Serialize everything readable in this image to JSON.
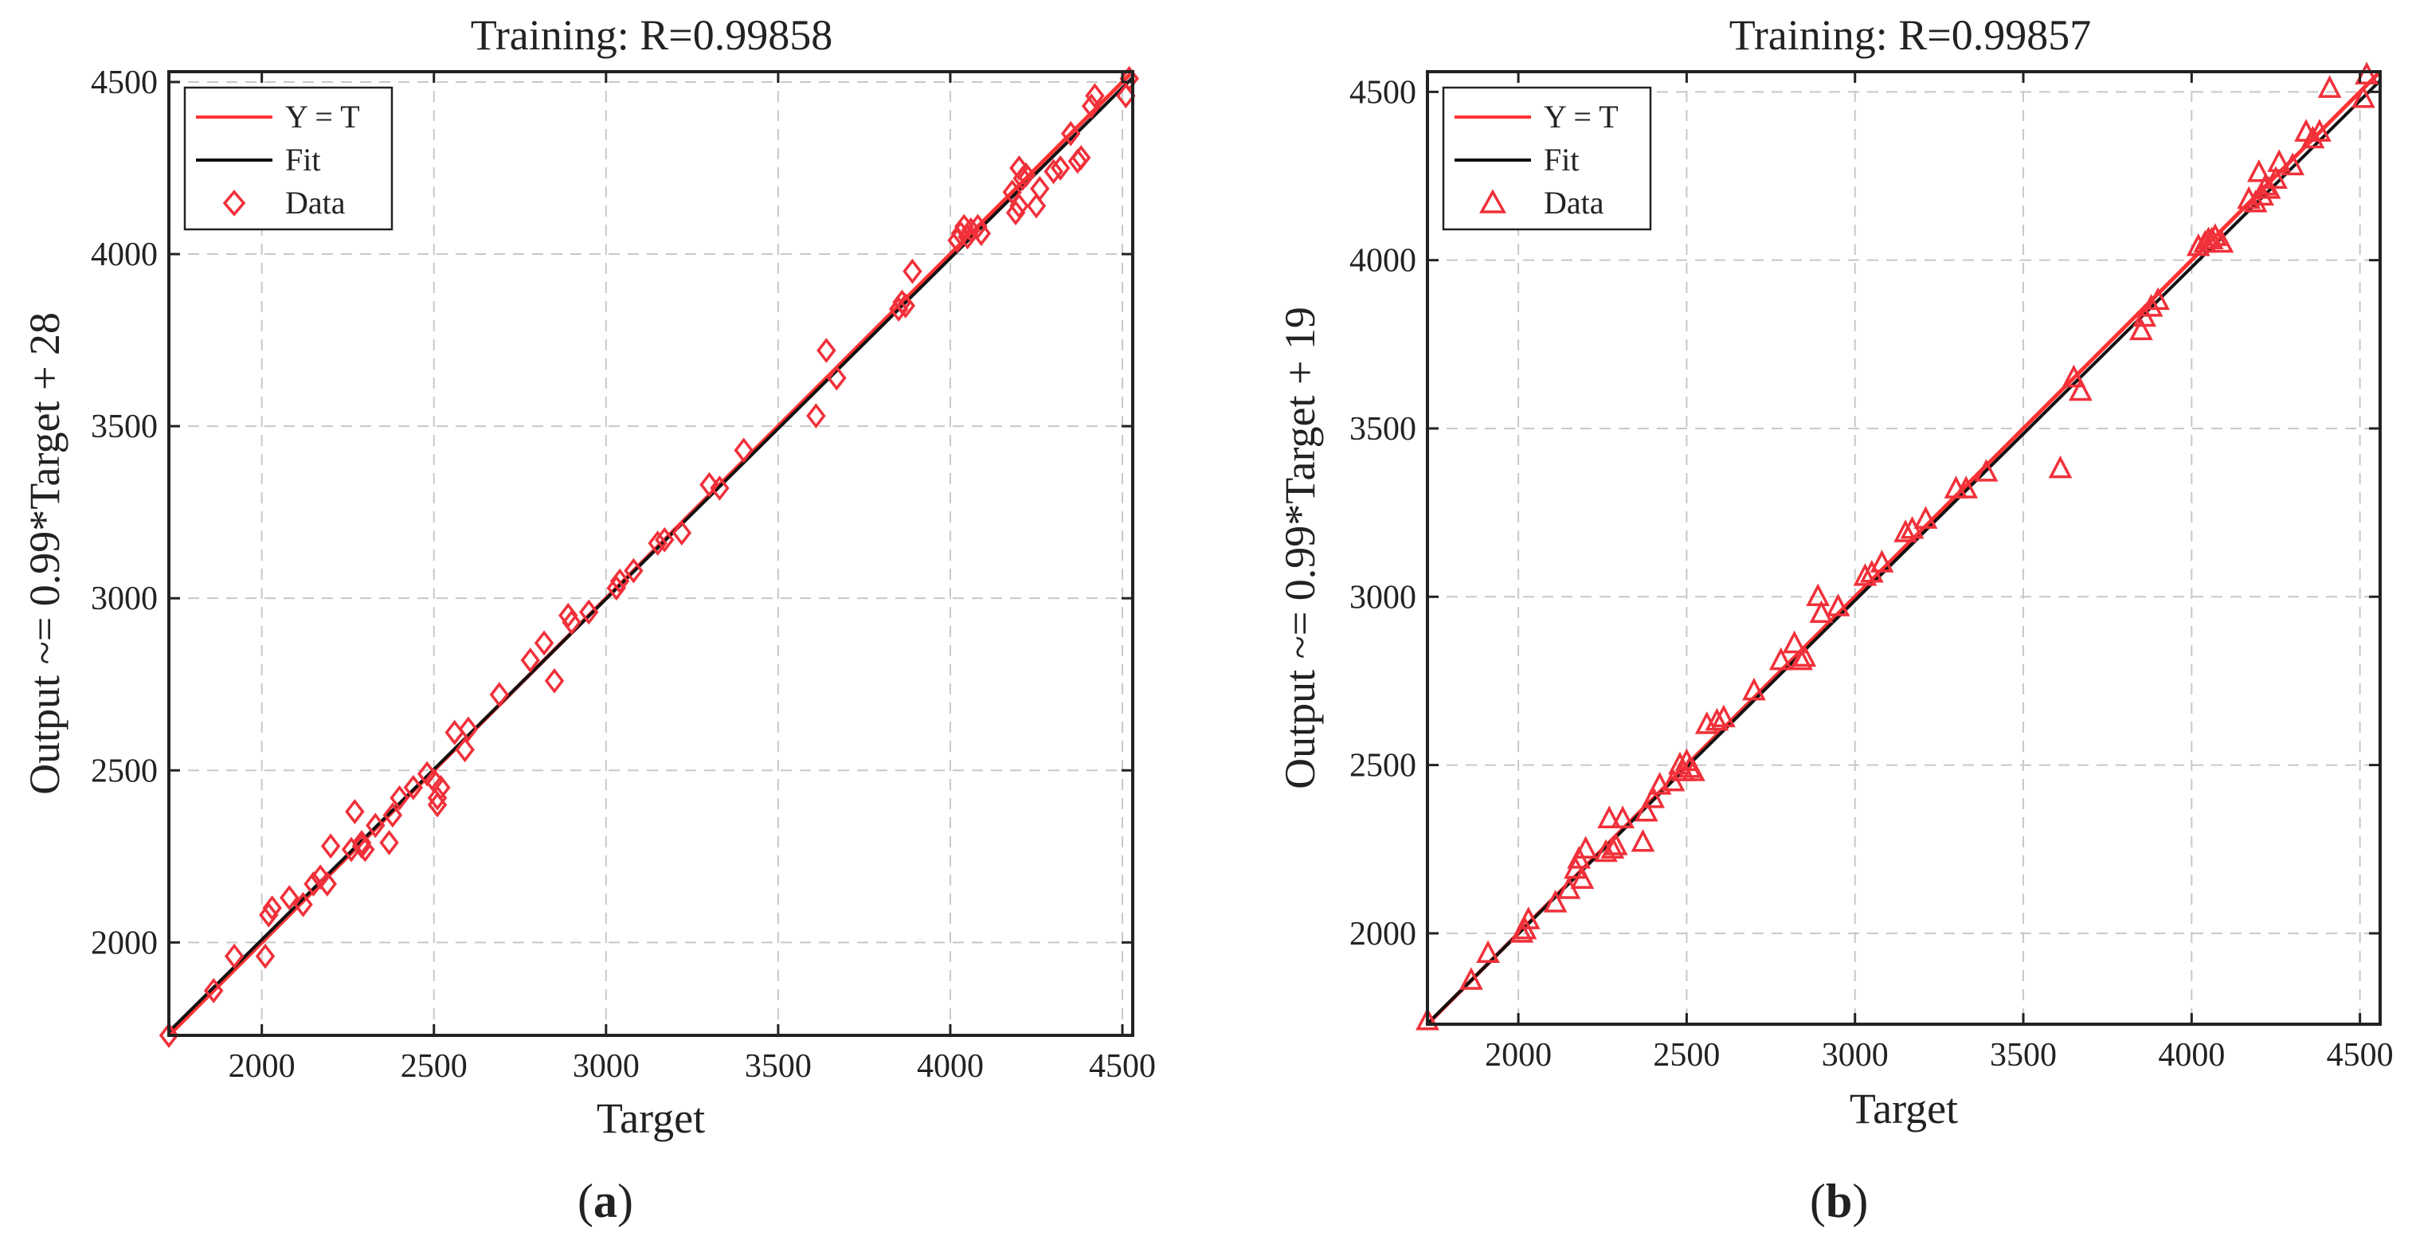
{
  "colors": {
    "identity_line": "#ff3333",
    "fit_line": "#111111",
    "marker": "#f0303a",
    "grid": "#c8c8c8",
    "axis": "#222222"
  },
  "chart_data": [
    {
      "panel": "(a)",
      "caption": {
        "open": "(",
        "letter": "a",
        "close": ")"
      },
      "type": "scatter",
      "title": "Training: R=0.99858",
      "xlabel": "Target",
      "ylabel": "Output ~= 0.99*Target + 28",
      "xlim": [
        1730,
        4530
      ],
      "ylim": [
        1730,
        4530
      ],
      "xticks": [
        2000,
        2500,
        3000,
        3500,
        4000,
        4500
      ],
      "yticks": [
        2000,
        2500,
        3000,
        3500,
        4000,
        4500
      ],
      "grid": true,
      "legend": {
        "position": "top-left",
        "entries": [
          {
            "label": "Y = T",
            "kind": "identity"
          },
          {
            "label": "Fit",
            "kind": "fit"
          },
          {
            "label": "Data",
            "kind": "marker"
          }
        ]
      },
      "marker": "diamond",
      "identity": {
        "x": [
          1730,
          4530
        ],
        "y": [
          1730,
          4530
        ]
      },
      "fit": {
        "slope": 0.99,
        "intercept": 28,
        "x": [
          1730,
          4530
        ]
      },
      "series": [
        {
          "name": "Data",
          "x": [
            1730,
            1860,
            1920,
            2010,
            2020,
            2030,
            2080,
            2120,
            2150,
            2170,
            2190,
            2200,
            2260,
            2270,
            2290,
            2290,
            2300,
            2330,
            2370,
            2380,
            2400,
            2440,
            2480,
            2500,
            2510,
            2510,
            2520,
            2560,
            2590,
            2600,
            2690,
            2780,
            2820,
            2850,
            2890,
            2900,
            2950,
            3030,
            3040,
            3080,
            3150,
            3170,
            3220,
            3300,
            3330,
            3400,
            3610,
            3640,
            3670,
            3850,
            3860,
            3870,
            3890,
            4020,
            4030,
            4040,
            4050,
            4060,
            4080,
            4090,
            4180,
            4190,
            4200,
            4200,
            4210,
            4220,
            4250,
            4260,
            4300,
            4320,
            4350,
            4370,
            4380,
            4410,
            4420,
            4510,
            4520
          ],
          "y": [
            1730,
            1860,
            1960,
            1960,
            2080,
            2100,
            2130,
            2110,
            2170,
            2190,
            2170,
            2280,
            2270,
            2380,
            2280,
            2290,
            2270,
            2340,
            2290,
            2370,
            2420,
            2450,
            2490,
            2470,
            2420,
            2400,
            2450,
            2610,
            2560,
            2620,
            2720,
            2820,
            2870,
            2760,
            2950,
            2930,
            2960,
            3030,
            3050,
            3080,
            3160,
            3170,
            3190,
            3330,
            3320,
            3430,
            3530,
            3720,
            3640,
            3840,
            3860,
            3850,
            3950,
            4040,
            4060,
            4080,
            4050,
            4070,
            4080,
            4060,
            4180,
            4120,
            4140,
            4250,
            4220,
            4230,
            4140,
            4190,
            4240,
            4250,
            4350,
            4270,
            4280,
            4430,
            4460,
            4460,
            4510
          ]
        }
      ]
    },
    {
      "panel": "(b)",
      "caption": {
        "open": "(",
        "letter": "b",
        "close": ")"
      },
      "type": "scatter",
      "title": "Training: R=0.99857",
      "xlabel": "Target",
      "ylabel": "Output ~= 0.99*Target + 19",
      "xlim": [
        1730,
        4560
      ],
      "ylim": [
        1730,
        4560
      ],
      "xticks": [
        2000,
        2500,
        3000,
        3500,
        4000,
        4500
      ],
      "yticks": [
        2000,
        2500,
        3000,
        3500,
        4000,
        4500
      ],
      "grid": true,
      "legend": {
        "position": "top-left",
        "entries": [
          {
            "label": "Y = T",
            "kind": "identity"
          },
          {
            "label": "Fit",
            "kind": "fit"
          },
          {
            "label": "Data",
            "kind": "marker"
          }
        ]
      },
      "marker": "triangle",
      "identity": {
        "x": [
          1730,
          4560
        ],
        "y": [
          1730,
          4560
        ]
      },
      "fit": {
        "slope": 0.99,
        "intercept": 19,
        "x": [
          1730,
          4560
        ]
      },
      "series": [
        {
          "name": "Data",
          "x": [
            1730,
            1860,
            1910,
            2010,
            2020,
            2030,
            2110,
            2150,
            2170,
            2180,
            2190,
            2200,
            2260,
            2270,
            2280,
            2290,
            2310,
            2370,
            2380,
            2400,
            2420,
            2460,
            2480,
            2490,
            2500,
            2510,
            2520,
            2560,
            2590,
            2610,
            2700,
            2780,
            2820,
            2840,
            2850,
            2890,
            2900,
            2950,
            3030,
            3050,
            3080,
            3150,
            3170,
            3210,
            3300,
            3330,
            3390,
            3610,
            3650,
            3670,
            3850,
            3860,
            3880,
            3900,
            4020,
            4040,
            4050,
            4060,
            4070,
            4090,
            4170,
            4190,
            4200,
            4210,
            4220,
            4230,
            4250,
            4260,
            4300,
            4340,
            4360,
            4380,
            4410,
            4510,
            4520
          ],
          "y": [
            1740,
            1860,
            1940,
            2000,
            2010,
            2040,
            2090,
            2130,
            2190,
            2220,
            2160,
            2250,
            2240,
            2340,
            2250,
            2260,
            2340,
            2270,
            2360,
            2400,
            2440,
            2450,
            2500,
            2480,
            2510,
            2490,
            2480,
            2620,
            2630,
            2640,
            2720,
            2810,
            2860,
            2810,
            2820,
            3000,
            2950,
            2970,
            3060,
            3070,
            3100,
            3190,
            3200,
            3230,
            3320,
            3320,
            3370,
            3380,
            3650,
            3610,
            3790,
            3830,
            3860,
            3880,
            4040,
            4050,
            4060,
            4060,
            4070,
            4050,
            4180,
            4170,
            4260,
            4190,
            4220,
            4210,
            4240,
            4290,
            4280,
            4380,
            4360,
            4380,
            4510,
            4480,
            4550
          ]
        }
      ]
    }
  ]
}
